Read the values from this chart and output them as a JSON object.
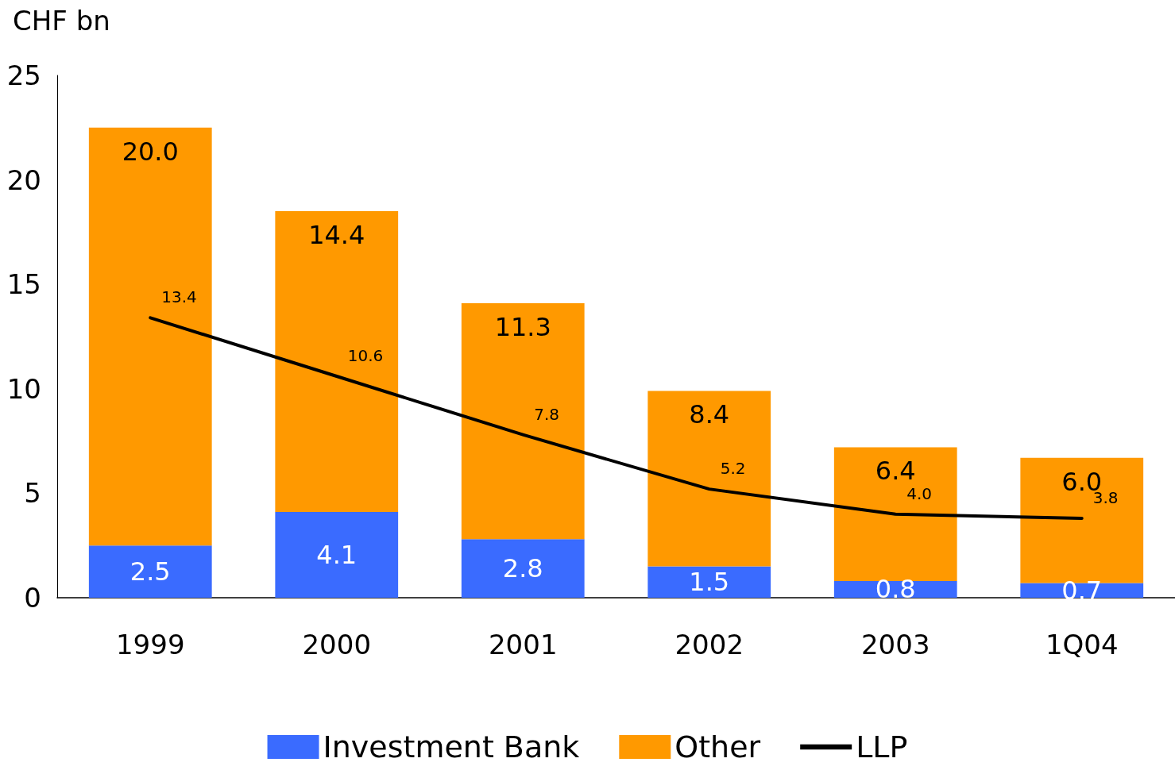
{
  "chart_data": {
    "type": "bar",
    "ylabel": "CHF bn",
    "categories": [
      "1999",
      "2000",
      "2001",
      "2002",
      "2003",
      "1Q04"
    ],
    "series": [
      {
        "name": "Investment Bank",
        "color": "#3a6bff",
        "values": [
          2.5,
          4.1,
          2.8,
          1.5,
          0.8,
          0.7
        ],
        "value_labels": [
          "2.5",
          "4.1",
          "2.8",
          "1.5",
          "0.8",
          "0.7"
        ]
      },
      {
        "name": "Other",
        "color": "#ff9900",
        "values": [
          20.0,
          14.4,
          11.3,
          8.4,
          6.4,
          6.0
        ],
        "value_labels": [
          "20.0",
          "14.4",
          "11.3",
          "8.4",
          "6.4",
          "6.0"
        ]
      },
      {
        "name": "LLP",
        "type": "line",
        "color": "#000000",
        "values": [
          13.4,
          10.6,
          7.8,
          5.2,
          4.0,
          3.8
        ],
        "value_labels": [
          "13.4",
          "10.6",
          "7.8",
          "5.2",
          "4.0",
          "3.8"
        ]
      }
    ],
    "stacked": true,
    "ylim": [
      0,
      25
    ],
    "yticks": [
      0,
      5,
      10,
      15,
      20,
      25
    ],
    "grid": false,
    "legend": "bottom",
    "marker": "none"
  }
}
